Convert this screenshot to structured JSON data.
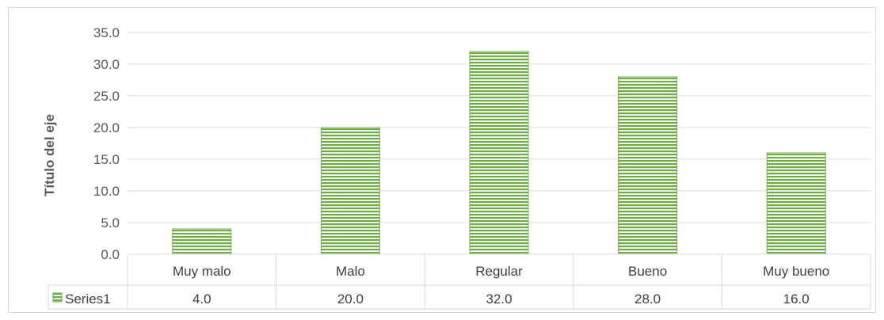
{
  "chart_data": {
    "type": "bar",
    "title": "",
    "xlabel": "",
    "ylabel": "Título del eje",
    "categories": [
      "Muy malo",
      "Malo",
      "Regular",
      "Bueno",
      "Muy bueno"
    ],
    "series": [
      {
        "name": "Series1",
        "values": [
          4.0,
          20.0,
          32.0,
          28.0,
          16.0
        ],
        "color": "#70ad47"
      }
    ],
    "data_table_values": [
      "4.0",
      "20.0",
      "32.0",
      "28.0",
      "16.0"
    ],
    "ylim": [
      0,
      35
    ],
    "yticks": [
      0,
      5,
      10,
      15,
      20,
      25,
      30,
      35
    ],
    "ytick_labels": [
      "0.0",
      "5.0",
      "10.0",
      "15.0",
      "20.0",
      "25.0",
      "30.0",
      "35.0"
    ],
    "grid": true,
    "legend": "data table",
    "colors": {
      "bar": "#70ad47",
      "bar_stripe": "#a9d18e",
      "grid": "#d9d9d9",
      "text": "#595959"
    }
  }
}
